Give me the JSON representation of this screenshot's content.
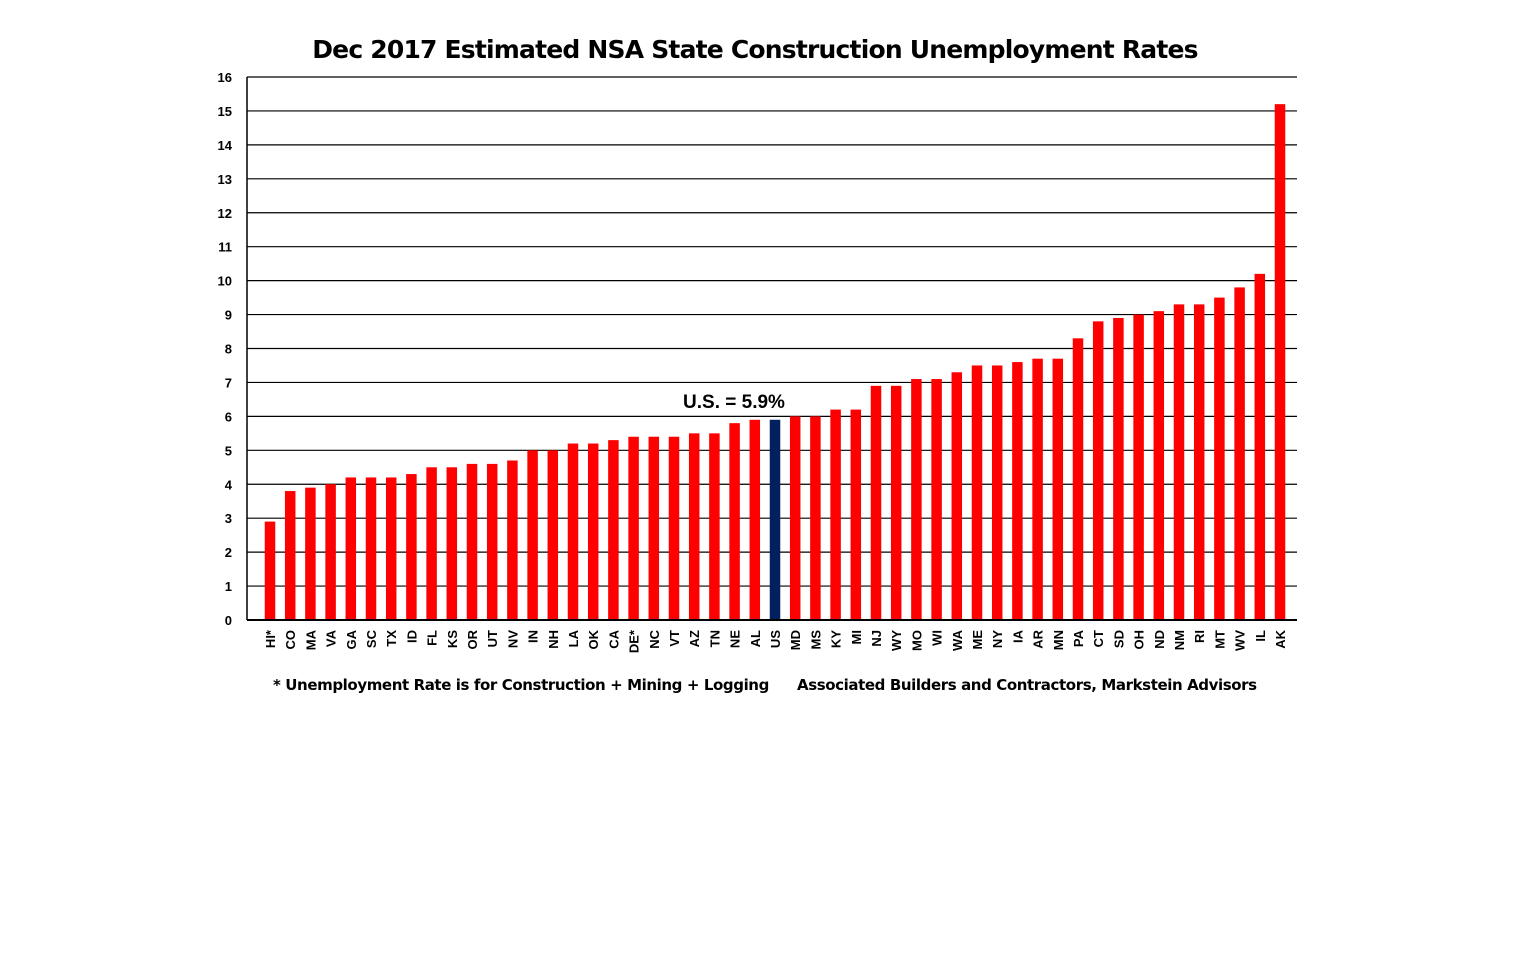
{
  "chart_data": {
    "type": "bar",
    "title": "Dec 2017 Estimated NSA State Construction Unemployment Rates",
    "xlabel": "",
    "ylabel": "",
    "ylim": [
      0,
      16
    ],
    "yticks": [
      0,
      1,
      2,
      3,
      4,
      5,
      6,
      7,
      8,
      9,
      10,
      11,
      12,
      13,
      14,
      15,
      16
    ],
    "grid": true,
    "categories": [
      "HI*",
      "CO",
      "MA",
      "VA",
      "GA",
      "SC",
      "TX",
      "ID",
      "FL",
      "KS",
      "OR",
      "UT",
      "NV",
      "IN",
      "NH",
      "LA",
      "OK",
      "CA",
      "DE*",
      "NC",
      "VT",
      "AZ",
      "TN",
      "NE",
      "AL",
      "US",
      "MD",
      "MS",
      "KY",
      "MI",
      "NJ",
      "WY",
      "MO",
      "WI",
      "WA",
      "ME",
      "NY",
      "IA",
      "AR",
      "MN",
      "PA",
      "CT",
      "SD",
      "OH",
      "ND",
      "NM",
      "RI",
      "MT",
      "WV",
      "IL",
      "AK"
    ],
    "values": [
      2.9,
      3.8,
      3.9,
      4.0,
      4.2,
      4.2,
      4.2,
      4.3,
      4.5,
      4.5,
      4.6,
      4.6,
      4.7,
      5.0,
      5.0,
      5.2,
      5.2,
      5.3,
      5.4,
      5.4,
      5.4,
      5.5,
      5.5,
      5.8,
      5.9,
      5.9,
      6.0,
      6.0,
      6.2,
      6.2,
      6.9,
      6.9,
      7.1,
      7.1,
      7.3,
      7.5,
      7.5,
      7.6,
      7.7,
      7.7,
      8.3,
      8.8,
      8.9,
      9.0,
      9.1,
      9.3,
      9.3,
      9.5,
      9.8,
      10.2,
      15.2
    ],
    "colors": {
      "state": "#FF0000",
      "highlight": "#002060",
      "highlight_category": "US"
    },
    "annotation": "U.S. = 5.9%",
    "footnote": "* Unemployment Rate is for Construction + Mining + Logging",
    "source": "Associated Builders and Contractors, Markstein Advisors"
  }
}
